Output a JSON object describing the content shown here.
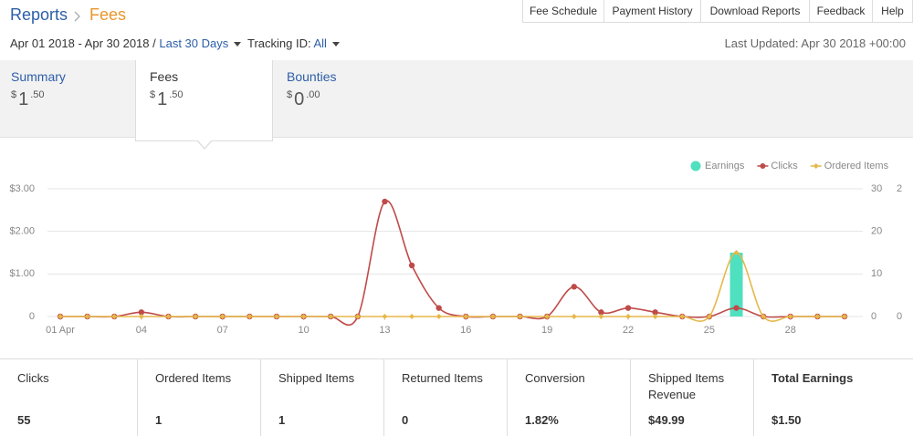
{
  "header": {
    "breadcrumb": [
      "Reports",
      "Fees"
    ],
    "nav": [
      "Fee Schedule",
      "Payment History",
      "Download Reports",
      "Feedback",
      "Help"
    ]
  },
  "filters": {
    "date_range": "Apr 01 2018 - Apr 30 2018 /",
    "period": "Last 30 Days",
    "tracking_label": "Tracking ID:",
    "tracking_value": "All",
    "last_updated": "Last Updated: Apr 30 2018 +00:00"
  },
  "tabs": [
    {
      "label": "Summary",
      "amount": {
        "currency": "$",
        "whole": "1",
        "cents": ".50"
      }
    },
    {
      "label": "Fees",
      "amount": {
        "currency": "$",
        "whole": "1",
        "cents": ".50"
      }
    },
    {
      "label": "Bounties",
      "amount": {
        "currency": "$",
        "whole": "0",
        "cents": ".00"
      }
    }
  ],
  "chart_data": {
    "type": "line",
    "x": [
      1,
      2,
      3,
      4,
      5,
      6,
      7,
      8,
      9,
      10,
      11,
      12,
      13,
      14,
      15,
      16,
      17,
      18,
      19,
      20,
      21,
      22,
      23,
      24,
      25,
      26,
      27,
      28,
      29,
      30
    ],
    "xlim": [
      1,
      30
    ],
    "xticks": [
      {
        "value": 1,
        "label": "01 Apr"
      },
      {
        "value": 4,
        "label": "04"
      },
      {
        "value": 7,
        "label": "07"
      },
      {
        "value": 10,
        "label": "10"
      },
      {
        "value": 13,
        "label": "13"
      },
      {
        "value": 16,
        "label": "16"
      },
      {
        "value": 19,
        "label": "19"
      },
      {
        "value": 22,
        "label": "22"
      },
      {
        "value": 25,
        "label": "25"
      },
      {
        "value": 28,
        "label": "28"
      }
    ],
    "ylim": [
      0,
      3
    ],
    "yticks": [
      0,
      {
        "value": 1,
        "label": "$1.00"
      },
      {
        "value": 2,
        "label": "$2.00"
      },
      {
        "value": 3,
        "label": "$3.00"
      }
    ],
    "y2lim": [
      0,
      30
    ],
    "y2ticks": [
      0,
      10,
      20,
      30
    ],
    "y3lim": [
      0,
      2
    ],
    "y3ticks": [
      0,
      2
    ],
    "grid": true,
    "legend": "top-right",
    "series": [
      {
        "name": "Earnings",
        "type": "bar",
        "color": "#4fe0bf",
        "values": [
          0,
          0,
          0,
          0,
          0,
          0,
          0,
          0,
          0,
          0,
          0,
          0,
          0,
          0,
          0,
          0,
          0,
          0,
          0,
          0,
          0,
          0,
          0,
          0,
          0,
          1.5,
          0,
          0,
          0,
          0
        ]
      },
      {
        "name": "Clicks",
        "type": "line",
        "axis": "y2",
        "color": "#bf4b49",
        "values": [
          0,
          0,
          0,
          1,
          0,
          0,
          0,
          0,
          0,
          0,
          0,
          0,
          27,
          12,
          2,
          0,
          0,
          0,
          0,
          7,
          1,
          2,
          1,
          0,
          0,
          2,
          0,
          0,
          0,
          0
        ]
      },
      {
        "name": "Ordered Items",
        "type": "line",
        "axis": "y3",
        "color": "#e6b84a",
        "values": [
          0,
          0,
          0,
          0,
          0,
          0,
          0,
          0,
          0,
          0,
          0,
          0,
          0,
          0,
          0,
          0,
          0,
          0,
          0,
          0,
          0,
          0,
          0,
          0,
          0,
          1,
          0,
          0,
          0,
          0
        ]
      }
    ]
  },
  "stats": [
    {
      "label": "Clicks",
      "value": "55"
    },
    {
      "label": "Ordered Items",
      "value": "1"
    },
    {
      "label": "Shipped Items",
      "value": "1"
    },
    {
      "label": "Returned Items",
      "value": "0"
    },
    {
      "label": "Conversion",
      "value": "1.82%"
    },
    {
      "label": "Shipped Items Revenue",
      "value": "$49.99"
    },
    {
      "label": "Total Earnings",
      "value": "$1.50"
    }
  ]
}
